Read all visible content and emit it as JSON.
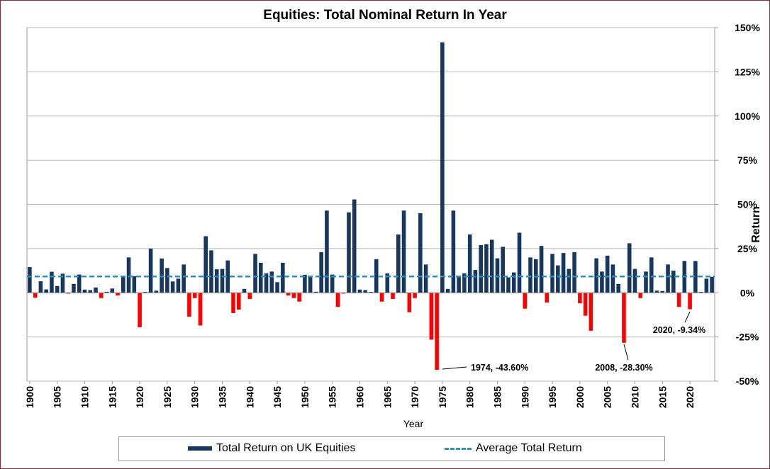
{
  "chart_data": {
    "type": "bar",
    "title": "Equities: Total Nominal Return In Year",
    "xlabel": "Year",
    "ylabel": "Return",
    "ylim": [
      -50,
      150
    ],
    "y_ticks": [
      "150%",
      "125%",
      "100%",
      "75%",
      "50%",
      "25%",
      "0%",
      "-25%",
      "-50%"
    ],
    "y_tick_values": [
      150,
      125,
      100,
      75,
      50,
      25,
      0,
      -25,
      -50
    ],
    "x_ticks": [
      1900,
      1905,
      1910,
      1915,
      1920,
      1925,
      1930,
      1935,
      1940,
      1945,
      1950,
      1955,
      1960,
      1965,
      1970,
      1975,
      1980,
      1985,
      1990,
      1995,
      2000,
      2005,
      2010,
      2015,
      2020
    ],
    "x_range": [
      1900,
      2024
    ],
    "grid": true,
    "legend_position": "bottom",
    "colors": {
      "positive": "#17375e",
      "negative": "#ff0000",
      "average": "#2e8fbf"
    },
    "series": [
      {
        "name": "Total Return on UK Equities",
        "years": [
          1900,
          1901,
          1902,
          1903,
          1904,
          1905,
          1906,
          1907,
          1908,
          1909,
          1910,
          1911,
          1912,
          1913,
          1914,
          1915,
          1916,
          1917,
          1918,
          1919,
          1920,
          1921,
          1922,
          1923,
          1924,
          1925,
          1926,
          1927,
          1928,
          1929,
          1930,
          1931,
          1932,
          1933,
          1934,
          1935,
          1936,
          1937,
          1938,
          1939,
          1940,
          1941,
          1942,
          1943,
          1944,
          1945,
          1946,
          1947,
          1948,
          1949,
          1950,
          1951,
          1952,
          1953,
          1954,
          1955,
          1956,
          1957,
          1958,
          1959,
          1960,
          1961,
          1962,
          1963,
          1964,
          1965,
          1966,
          1967,
          1968,
          1969,
          1970,
          1971,
          1972,
          1973,
          1974,
          1975,
          1976,
          1977,
          1978,
          1979,
          1980,
          1981,
          1982,
          1983,
          1984,
          1985,
          1986,
          1987,
          1988,
          1989,
          1990,
          1991,
          1992,
          1993,
          1994,
          1995,
          1996,
          1997,
          1998,
          1999,
          2000,
          2001,
          2002,
          2003,
          2004,
          2005,
          2006,
          2007,
          2008,
          2009,
          2010,
          2011,
          2012,
          2013,
          2014,
          2015,
          2016,
          2017,
          2018,
          2019,
          2020,
          2021,
          2022,
          2023,
          2024
        ],
        "values": [
          14.5,
          -2.8,
          6.5,
          1.9,
          11.9,
          3.8,
          10.8,
          -0.5,
          5.0,
          10.3,
          1.8,
          1.5,
          3.0,
          -3.0,
          0.6,
          2.4,
          -1.5,
          9.0,
          20.0,
          9.4,
          -19.5,
          0.5,
          25.0,
          1.2,
          19.4,
          14.0,
          6.4,
          8.0,
          16.0,
          -13.5,
          -3.0,
          -18.5,
          32.0,
          24.0,
          13.3,
          13.5,
          18.3,
          -11.5,
          -9.5,
          2.2,
          -3.5,
          22.0,
          17.0,
          11.0,
          12.0,
          6.0,
          17.0,
          -1.5,
          -3.0,
          -5.0,
          10.2,
          9.0,
          0.6,
          23.0,
          46.5,
          10.3,
          -8.0,
          -0.5,
          45.5,
          52.8,
          1.8,
          1.5,
          0.5,
          19.0,
          -5.0,
          11.0,
          -3.5,
          33.0,
          46.5,
          -11.0,
          -3.0,
          45.0,
          16.0,
          -26.5,
          -43.6,
          141.7,
          2.2,
          46.5,
          9.0,
          11.0,
          33.0,
          12.9,
          27.0,
          27.5,
          30.0,
          19.5,
          26.0,
          8.7,
          11.5,
          34.0,
          -9.0,
          20.0,
          19.0,
          26.5,
          -5.5,
          22.0,
          15.5,
          22.5,
          13.5,
          23.0,
          -6.0,
          -13.0,
          -21.5,
          19.5,
          12.0,
          21.0,
          16.0,
          5.0,
          -28.3,
          28.0,
          13.5,
          -3.0,
          12.0,
          20.0,
          1.2,
          1.0,
          16.0,
          12.5,
          -8.0,
          18.0,
          -9.34,
          18.0,
          0.5,
          8.0,
          9.0
        ]
      },
      {
        "name": "Average Total Return",
        "value": 9.2
      }
    ],
    "annotations": [
      {
        "year": 1974,
        "value": -43.6,
        "text": "1974, -43.60%"
      },
      {
        "year": 2008,
        "value": -28.3,
        "text": "2008, -28.30%"
      },
      {
        "year": 2020,
        "value": -9.34,
        "text": "2020, -9.34%"
      }
    ]
  },
  "legend": {
    "bars_label": "Total Return on UK Equities",
    "line_label": "Average Total Return"
  }
}
